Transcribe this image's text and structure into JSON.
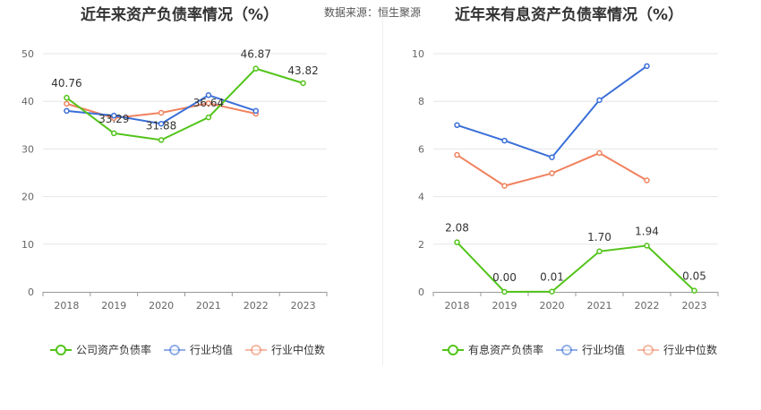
{
  "source_text": "数据来源：恒生聚源",
  "charts": [
    {
      "title": "近年来资产负债率情况（%）",
      "chart_data": {
        "type": "line",
        "title": "近年来资产负债率情况（%）",
        "categories": [
          "2018",
          "2019",
          "2020",
          "2021",
          "2022",
          "2023"
        ],
        "ylim": [
          0,
          50
        ],
        "yticks": [
          "0",
          "10",
          "20",
          "30",
          "40",
          "50"
        ],
        "grid": true,
        "legend_position": "bottom",
        "series": [
          {
            "name": "公司资产负债率",
            "color": "#52c41a",
            "values": [
              40.76,
              33.29,
              31.88,
              36.64,
              46.87,
              43.82
            ],
            "labels": [
              "40.76",
              "33.29",
              "31.88",
              "36.64",
              "46.87",
              "43.82"
            ]
          },
          {
            "name": "行业均值",
            "color": "#3a6fd8",
            "values": [
              38.0,
              37.0,
              35.3,
              41.3,
              38.0,
              null
            ]
          },
          {
            "name": "行业中位数",
            "color": "#f0825e",
            "values": [
              39.5,
              36.5,
              37.6,
              39.6,
              37.4,
              null
            ]
          }
        ]
      }
    },
    {
      "title": "近年来有息资产负债率情况（%）",
      "chart_data": {
        "type": "line",
        "title": "近年来有息资产负债率情况（%）",
        "categories": [
          "2018",
          "2019",
          "2020",
          "2021",
          "2022",
          "2023"
        ],
        "ylim": [
          0,
          10
        ],
        "yticks": [
          "0",
          "2",
          "4",
          "6",
          "8",
          "10"
        ],
        "grid": true,
        "legend_position": "bottom",
        "series": [
          {
            "name": "有息资产负债率",
            "color": "#52c41a",
            "values": [
              2.08,
              0.0,
              0.01,
              1.7,
              1.94,
              0.05
            ],
            "labels": [
              "2.08",
              "0.00",
              "0.01",
              "1.70",
              "1.94",
              "0.05"
            ]
          },
          {
            "name": "行业均值",
            "color": "#3a6fd8",
            "values": [
              7.0,
              6.35,
              5.65,
              8.05,
              9.48,
              null
            ]
          },
          {
            "name": "行业中位数",
            "color": "#f0825e",
            "values": [
              5.75,
              4.45,
              4.98,
              5.83,
              4.68,
              null
            ]
          }
        ]
      }
    }
  ]
}
